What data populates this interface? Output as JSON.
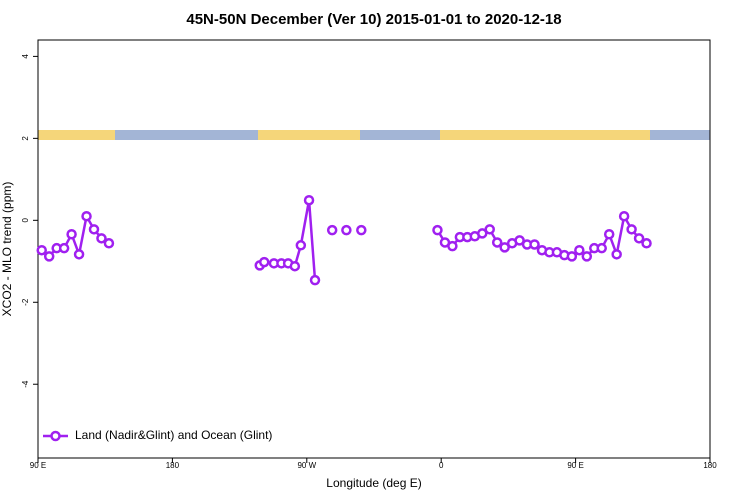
{
  "chart_data": {
    "type": "line",
    "title": "45N-50N December (Ver 10)   2015-01-01 to 2020-12-18",
    "xlabel": "Longitude (deg E)",
    "ylabel": "XCO2 - MLO trend (ppm)",
    "xlim": [
      -270,
      180
    ],
    "ylim": [
      -5.8,
      4.4
    ],
    "xticks": [
      {
        "value": -270,
        "label": "90 E"
      },
      {
        "value": -180,
        "label": "180"
      },
      {
        "value": -90,
        "label": "90 W"
      },
      0,
      {
        "value": 90,
        "label": "90 E"
      },
      180
    ],
    "yticks": [
      -4,
      -2,
      0,
      2,
      4
    ],
    "legend": "bottomleft",
    "x": [
      -267.5,
      -262.5,
      -257.5,
      -252.5,
      -247.5,
      -242.5,
      -237.5,
      -232.5,
      -227.5,
      -222.5,
      -172.5,
      -121.5,
      -118.5,
      -112,
      -107,
      -102.5,
      -98,
      -94,
      -88.5,
      -84.5,
      -79,
      -73,
      -68,
      -63.5,
      -58.5,
      -53.5,
      -30,
      -2.5,
      2.5,
      7.5,
      12.5,
      17.5,
      22.5,
      27.5,
      32.5,
      37.5,
      42.5,
      47.5,
      52.5,
      57.5,
      62.5,
      67.5,
      72.5,
      77.5,
      82.5,
      87.5,
      92.5,
      97.5,
      102.5,
      107.5,
      112.5,
      117.5,
      122.5,
      127.5,
      132.5,
      137.5
    ],
    "series": [
      {
        "name": "Land (Nadir&Glint) and Ocean (Glint)",
        "color": "#a020f0",
        "values": [
          -0.73,
          -0.88,
          -0.68,
          -0.68,
          -0.34,
          -0.83,
          0.1,
          -0.22,
          -0.44,
          -0.56,
          null,
          -1.1,
          -1.02,
          -1.05,
          -1.05,
          -1.05,
          -1.12,
          -0.61,
          0.49,
          -1.46,
          null,
          -0.24,
          null,
          -0.24,
          null,
          -0.24,
          null,
          -0.24,
          -0.54,
          -0.63,
          -0.41,
          -0.41,
          -0.39,
          -0.32,
          -0.22,
          -0.54,
          -0.66,
          -0.56,
          -0.49,
          -0.59,
          -0.59,
          -0.73,
          -0.78,
          -0.78,
          -0.85,
          -0.88,
          -0.73,
          -0.88,
          -0.68,
          -0.68,
          -0.34,
          -0.83,
          0.1,
          -0.22,
          -0.44,
          -0.56
        ]
      }
    ]
  }
}
